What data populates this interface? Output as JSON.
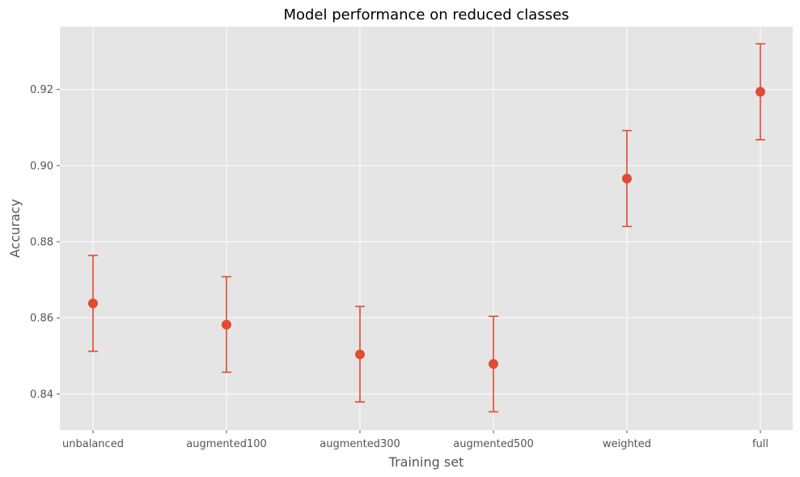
{
  "chart_data": {
    "type": "scatter",
    "title": "Model performance on reduced classes",
    "xlabel": "Training set",
    "ylabel": "Accuracy",
    "categories": [
      "unbalanced",
      "augmented100",
      "augmented300",
      "augmented500",
      "weighted",
      "full"
    ],
    "values": [
      0.8638,
      0.8582,
      0.8504,
      0.8479,
      0.8966,
      0.9194
    ],
    "error_lower": [
      0.8512,
      0.8457,
      0.8379,
      0.8353,
      0.884,
      0.9068
    ],
    "error_upper": [
      0.8764,
      0.8708,
      0.863,
      0.8604,
      0.9092,
      0.932
    ],
    "ylim": [
      0.8305,
      0.9365
    ],
    "yticks": [
      "0.84",
      "0.86",
      "0.88",
      "0.90",
      "0.92"
    ],
    "grid": true,
    "legend": "none",
    "colors": {
      "marker": "#e24a33",
      "background": "#e5e5e5",
      "grid": "#ffffff"
    }
  }
}
